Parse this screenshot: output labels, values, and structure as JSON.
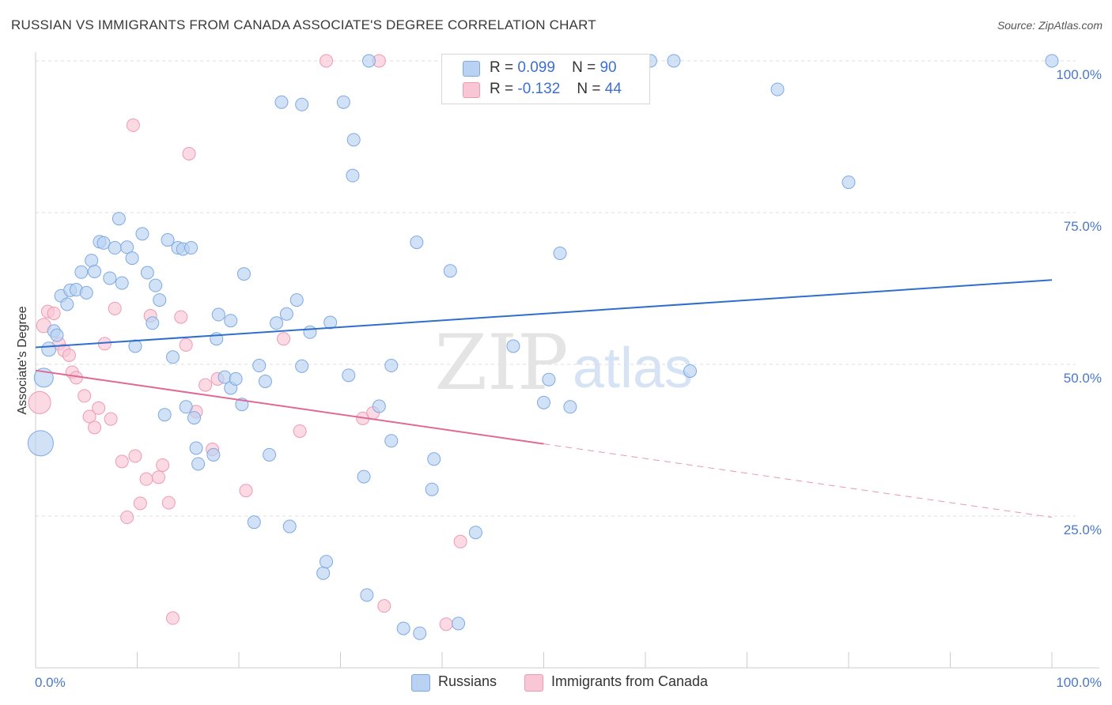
{
  "header": {
    "title": "RUSSIAN VS IMMIGRANTS FROM CANADA ASSOCIATE'S DEGREE CORRELATION CHART",
    "source": "Source: ZipAtlas.com"
  },
  "watermark": {
    "zip": "ZIP",
    "atlas": "atlas"
  },
  "legend": {
    "russians": {
      "r_label": "R =",
      "r_value": "0.099",
      "n_label": "N =",
      "n_value": "90"
    },
    "canada": {
      "r_label": "R =",
      "r_value": "-0.132",
      "n_label": "N =",
      "n_value": "44"
    }
  },
  "bottom_legend": {
    "russians": "Russians",
    "canada": "Immigrants from Canada"
  },
  "colors": {
    "russians_fill": "#b9d2f3",
    "russians_stroke": "#7fa9e3",
    "russians_line": "#2f6fcc",
    "canada_fill": "#f9c6d5",
    "canada_stroke": "#ee9ab3",
    "canada_line": "#e06a94",
    "grid": "#dddddd",
    "tick_label": "#4a78c8"
  },
  "chart_data": {
    "type": "scatter",
    "title": "RUSSIAN VS IMMIGRANTS FROM CANADA ASSOCIATE'S DEGREE CORRELATION CHART",
    "xlabel": "",
    "ylabel": "Associate's Degree",
    "xlim": [
      0,
      100
    ],
    "ylim": [
      0,
      102
    ],
    "x_tick_labels": [
      "0.0%",
      "100.0%"
    ],
    "y_ticks": [
      25,
      50,
      75,
      100
    ],
    "y_tick_labels": [
      "25.0%",
      "50.0%",
      "75.0%",
      "100.0%"
    ],
    "grid": true,
    "legend_position": "top-center",
    "series": [
      {
        "name": "Russians",
        "r": 0.099,
        "n": 90,
        "trend": {
          "x": [
            0,
            100
          ],
          "y": [
            52.8,
            63.9
          ],
          "dashed_from": null
        },
        "points": [
          [
            0.5,
            37,
            16
          ],
          [
            0.8,
            47.8,
            12
          ],
          [
            1.3,
            52.5,
            9
          ],
          [
            1.8,
            55.5,
            8
          ],
          [
            2.1,
            54.8,
            8
          ],
          [
            2.5,
            61.3,
            8
          ],
          [
            3.1,
            59.9,
            8
          ],
          [
            3.4,
            62.2,
            8
          ],
          [
            4.0,
            62.3,
            8
          ],
          [
            4.5,
            65.2,
            8
          ],
          [
            5.0,
            61.8,
            8
          ],
          [
            5.5,
            67.1,
            8
          ],
          [
            5.8,
            65.3,
            8
          ],
          [
            6.3,
            70.2,
            8
          ],
          [
            6.7,
            70.0,
            8
          ],
          [
            7.3,
            64.2,
            8
          ],
          [
            7.8,
            69.2,
            8
          ],
          [
            8.2,
            74.0,
            8
          ],
          [
            8.5,
            63.4,
            8
          ],
          [
            9.0,
            69.3,
            8
          ],
          [
            9.5,
            67.5,
            8
          ],
          [
            9.8,
            53.0,
            8
          ],
          [
            10.5,
            71.5,
            8
          ],
          [
            11.0,
            65.1,
            8
          ],
          [
            11.5,
            56.8,
            8
          ],
          [
            11.8,
            63.0,
            8
          ],
          [
            12.2,
            60.6,
            8
          ],
          [
            12.7,
            41.7,
            8
          ],
          [
            13.0,
            70.5,
            8
          ],
          [
            13.5,
            51.2,
            8
          ],
          [
            14.0,
            69.2,
            8
          ],
          [
            14.5,
            69.0,
            8
          ],
          [
            14.8,
            43.0,
            8
          ],
          [
            15.3,
            69.2,
            8
          ],
          [
            15.6,
            41.2,
            8
          ],
          [
            15.8,
            36.2,
            8
          ],
          [
            16.0,
            33.6,
            8
          ],
          [
            17.5,
            35.1,
            8
          ],
          [
            17.8,
            54.2,
            8
          ],
          [
            18.0,
            58.2,
            8
          ],
          [
            18.6,
            47.9,
            8
          ],
          [
            19.2,
            46.1,
            8
          ],
          [
            19.7,
            47.6,
            8
          ],
          [
            20.3,
            43.4,
            8
          ],
          [
            19.2,
            57.2,
            8
          ],
          [
            20.5,
            64.9,
            8
          ],
          [
            21.5,
            24.0,
            8
          ],
          [
            22.0,
            49.8,
            8
          ],
          [
            22.6,
            47.2,
            8
          ],
          [
            23.0,
            35.1,
            8
          ],
          [
            23.7,
            56.8,
            8
          ],
          [
            24.2,
            93.2,
            8
          ],
          [
            24.7,
            58.3,
            8
          ],
          [
            25.0,
            23.3,
            8
          ],
          [
            25.7,
            60.6,
            8
          ],
          [
            26.2,
            92.8,
            8
          ],
          [
            26.2,
            49.7,
            8
          ],
          [
            27.0,
            55.3,
            8
          ],
          [
            28.3,
            15.6,
            8
          ],
          [
            28.6,
            17.5,
            8
          ],
          [
            29.0,
            56.9,
            8
          ],
          [
            30.3,
            93.2,
            8
          ],
          [
            30.8,
            48.2,
            8
          ],
          [
            31.3,
            87.0,
            8
          ],
          [
            31.2,
            81.1,
            8
          ],
          [
            32.3,
            31.5,
            8
          ],
          [
            32.6,
            12.0,
            8
          ],
          [
            32.8,
            100.0,
            8
          ],
          [
            33.8,
            43.1,
            8
          ],
          [
            35.0,
            49.8,
            8
          ],
          [
            35.0,
            37.4,
            8
          ],
          [
            36.2,
            6.5,
            8
          ],
          [
            37.5,
            70.1,
            8
          ],
          [
            37.8,
            5.7,
            8
          ],
          [
            39.2,
            34.4,
            8
          ],
          [
            39.0,
            29.4,
            8
          ],
          [
            40.8,
            65.4,
            8
          ],
          [
            41.6,
            7.3,
            8
          ],
          [
            43.3,
            22.3,
            8
          ],
          [
            47.0,
            53.0,
            8
          ],
          [
            50.0,
            43.7,
            8
          ],
          [
            50.5,
            47.5,
            8
          ],
          [
            51.6,
            68.3,
            8
          ],
          [
            52.6,
            43.0,
            8
          ],
          [
            60.5,
            100.0,
            8
          ],
          [
            64.4,
            48.9,
            8
          ],
          [
            73.0,
            95.3,
            8
          ],
          [
            80.0,
            80.0,
            8
          ],
          [
            100.0,
            100.0,
            8
          ],
          [
            62.8,
            100.0,
            8
          ]
        ]
      },
      {
        "name": "Immigrants from Canada",
        "r": -0.132,
        "n": 44,
        "trend": {
          "x": [
            0,
            100
          ],
          "y": [
            49.0,
            24.8
          ],
          "dashed_from": 50
        },
        "points": [
          [
            0.4,
            43.7,
            14
          ],
          [
            0.8,
            56.4,
            9
          ],
          [
            1.2,
            58.7,
            8
          ],
          [
            1.8,
            58.4,
            8
          ],
          [
            2.3,
            53.4,
            8
          ],
          [
            2.8,
            52.3,
            8
          ],
          [
            3.3,
            51.5,
            8
          ],
          [
            3.6,
            48.7,
            8
          ],
          [
            4.0,
            47.8,
            8
          ],
          [
            4.8,
            44.8,
            8
          ],
          [
            5.3,
            41.4,
            8
          ],
          [
            5.8,
            39.6,
            8
          ],
          [
            6.2,
            42.8,
            8
          ],
          [
            6.8,
            53.4,
            8
          ],
          [
            7.4,
            41.0,
            8
          ],
          [
            7.8,
            59.2,
            8
          ],
          [
            8.5,
            34.0,
            8
          ],
          [
            9.0,
            24.8,
            8
          ],
          [
            9.6,
            89.4,
            8
          ],
          [
            9.8,
            34.9,
            8
          ],
          [
            10.3,
            27.1,
            8
          ],
          [
            10.9,
            31.1,
            8
          ],
          [
            11.3,
            58.0,
            8
          ],
          [
            12.1,
            31.4,
            8
          ],
          [
            12.5,
            33.4,
            8
          ],
          [
            13.1,
            27.2,
            8
          ],
          [
            13.5,
            8.2,
            8
          ],
          [
            14.3,
            57.8,
            8
          ],
          [
            14.8,
            53.2,
            8
          ],
          [
            15.1,
            84.7,
            8
          ],
          [
            15.8,
            42.2,
            8
          ],
          [
            16.7,
            46.6,
            8
          ],
          [
            17.4,
            36.0,
            8
          ],
          [
            17.9,
            47.6,
            8
          ],
          [
            20.7,
            29.2,
            8
          ],
          [
            24.4,
            54.2,
            8
          ],
          [
            26.0,
            39.0,
            8
          ],
          [
            28.6,
            100.0,
            8
          ],
          [
            32.2,
            41.1,
            8
          ],
          [
            33.2,
            42.0,
            8
          ],
          [
            33.8,
            100.0,
            8
          ],
          [
            34.3,
            10.2,
            8
          ],
          [
            40.4,
            7.2,
            8
          ],
          [
            41.8,
            20.8,
            8
          ]
        ]
      }
    ]
  }
}
